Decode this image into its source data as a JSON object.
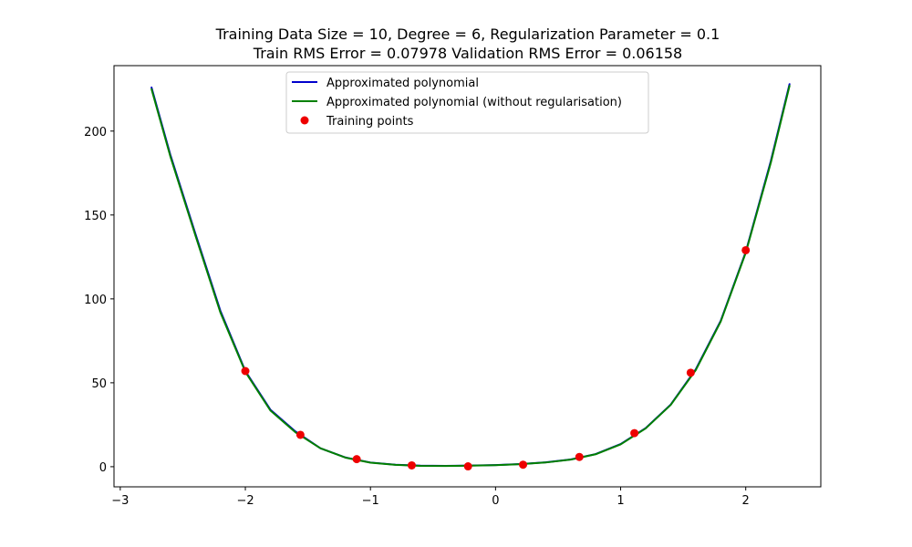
{
  "chart_data": {
    "type": "line",
    "title_lines": [
      "Training Data Size = 10, Degree = 6, Regularization Parameter = 0.1",
      "Train RMS Error = 0.07978 Validation RMS Error = 0.06158"
    ],
    "xlabel": "",
    "ylabel": "",
    "xlim": [
      -3.05,
      2.6
    ],
    "ylim": [
      -12,
      239
    ],
    "x_ticks": [
      -3,
      -2,
      -1,
      0,
      1,
      2
    ],
    "x_tick_labels": [
      "−3",
      "−2",
      "−1",
      "0",
      "1",
      "2"
    ],
    "y_ticks": [
      0,
      50,
      100,
      150,
      200
    ],
    "y_tick_labels": [
      "0",
      "50",
      "100",
      "150",
      "200"
    ],
    "grid": false,
    "legend_position": "top-center",
    "series": [
      {
        "name": "Approximated polynomial",
        "kind": "line",
        "color": "#0000cc",
        "x": [
          -2.75,
          -2.6,
          -2.4,
          -2.2,
          -2.0,
          -1.8,
          -1.6,
          -1.4,
          -1.2,
          -1.0,
          -0.8,
          -0.6,
          -0.4,
          -0.2,
          0.0,
          0.2,
          0.4,
          0.6,
          0.8,
          1.0,
          1.2,
          1.4,
          1.6,
          1.8,
          2.0,
          2.2,
          2.35
        ],
        "y": [
          226,
          186,
          139,
          93,
          57,
          34,
          21,
          11,
          5.5,
          2.5,
          1.2,
          0.6,
          0.5,
          0.7,
          1.0,
          1.6,
          2.6,
          4.3,
          7.5,
          13.5,
          23,
          37,
          58,
          87,
          128,
          182,
          228
        ]
      },
      {
        "name": "Approximated polynomial (without regularisation)",
        "kind": "line",
        "color": "#008000",
        "x": [
          -2.75,
          -2.6,
          -2.4,
          -2.2,
          -2.0,
          -1.8,
          -1.6,
          -1.4,
          -1.2,
          -1.0,
          -0.8,
          -0.6,
          -0.4,
          -0.2,
          0.0,
          0.2,
          0.4,
          0.6,
          0.8,
          1.0,
          1.2,
          1.4,
          1.6,
          1.8,
          2.0,
          2.2,
          2.35
        ],
        "y": [
          225,
          185,
          138,
          92,
          56.5,
          33.5,
          20.5,
          11,
          5.4,
          2.4,
          1.1,
          0.5,
          0.4,
          0.6,
          0.9,
          1.5,
          2.5,
          4.2,
          7.4,
          13.3,
          22.8,
          36.8,
          57.5,
          86.5,
          127.5,
          181,
          227
        ]
      },
      {
        "name": "Training points",
        "kind": "scatter",
        "color": "#ee0000",
        "x": [
          -2.0,
          -1.56,
          -1.11,
          -0.67,
          -0.22,
          0.22,
          0.67,
          1.11,
          1.56,
          2.0
        ],
        "y": [
          57,
          19,
          4.5,
          0.8,
          0.2,
          1.2,
          5.8,
          20,
          56,
          129
        ]
      }
    ]
  }
}
